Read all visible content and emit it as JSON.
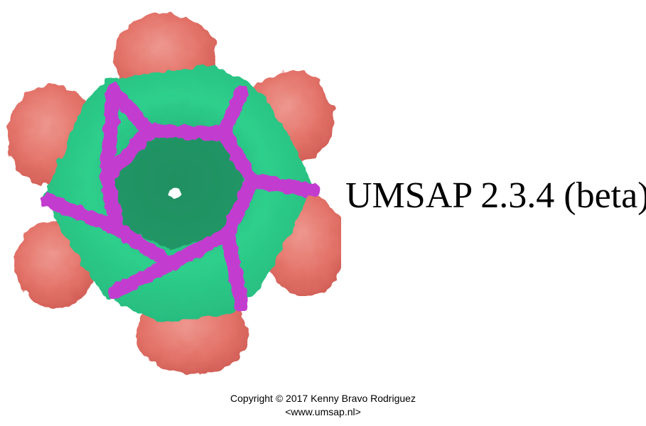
{
  "splash": {
    "title": "UMSAP 2.3.4 (beta)",
    "copyright": "Copyright © 2017 Kenny Bravo Rodriguez",
    "website": "<www.umsap.nl>",
    "image": {
      "subject": "protein-complex-surface-render",
      "colors": {
        "outer_subunits": "#e06055",
        "core": "#2ecf8c",
        "highlight": "#c23ccf"
      }
    }
  }
}
